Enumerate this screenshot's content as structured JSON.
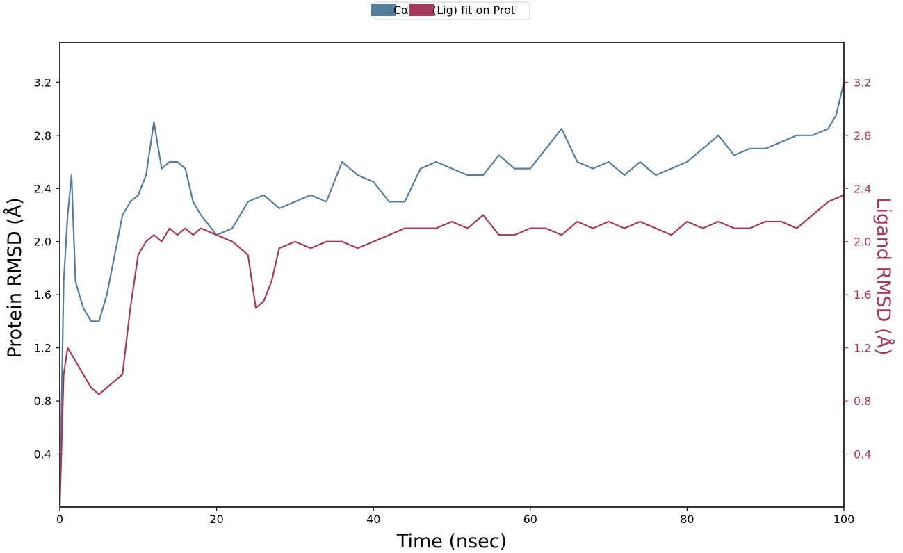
{
  "chart_data": {
    "type": "line",
    "xlabel": "Time (nsec)",
    "ylabel_left": "Protein RMSD (Å)",
    "ylabel_right": "Ligand RMSD (Å)",
    "xlim": [
      0,
      100
    ],
    "ylim_left": [
      0,
      3.5
    ],
    "ylim_right": [
      0,
      3.5
    ],
    "x_ticks": [
      0,
      20,
      40,
      60,
      80,
      100
    ],
    "y_ticks_left": [
      0.4,
      0.8,
      1.2,
      1.6,
      2.0,
      2.4,
      2.8,
      3.2
    ],
    "y_ticks_right": [
      0.4,
      0.8,
      1.2,
      1.6,
      2.0,
      2.4,
      2.8,
      3.2
    ],
    "grid": false,
    "legend_position": "top-center",
    "series": [
      {
        "name": "Cα",
        "axis": "left",
        "color": "#567e9c",
        "x": [
          0,
          0.5,
          1,
          1.5,
          2,
          3,
          4,
          5,
          6,
          7,
          8,
          9,
          10,
          11,
          12,
          13,
          14,
          15,
          16,
          17,
          18,
          20,
          22,
          24,
          26,
          28,
          30,
          32,
          34,
          36,
          38,
          40,
          42,
          44,
          46,
          48,
          50,
          52,
          54,
          56,
          58,
          60,
          62,
          64,
          66,
          68,
          70,
          72,
          74,
          76,
          78,
          80,
          82,
          84,
          86,
          88,
          90,
          92,
          94,
          96,
          98,
          99,
          100
        ],
        "y": [
          0.0,
          1.7,
          2.2,
          2.5,
          1.7,
          1.5,
          1.4,
          1.4,
          1.6,
          1.9,
          2.2,
          2.3,
          2.35,
          2.5,
          2.9,
          2.55,
          2.6,
          2.6,
          2.55,
          2.3,
          2.2,
          2.05,
          2.1,
          2.3,
          2.35,
          2.25,
          2.3,
          2.35,
          2.3,
          2.6,
          2.5,
          2.45,
          2.3,
          2.3,
          2.55,
          2.6,
          2.55,
          2.5,
          2.5,
          2.65,
          2.55,
          2.55,
          2.7,
          2.85,
          2.6,
          2.55,
          2.6,
          2.5,
          2.6,
          2.5,
          2.55,
          2.6,
          2.7,
          2.8,
          2.65,
          2.7,
          2.7,
          2.75,
          2.8,
          2.8,
          2.85,
          2.95,
          3.2
        ]
      },
      {
        "name": "(Lig) fit on Prot",
        "axis": "right",
        "color": "#a33a5e",
        "x": [
          0,
          0.5,
          1,
          2,
          3,
          4,
          5,
          6,
          7,
          8,
          9,
          10,
          11,
          12,
          13,
          14,
          15,
          16,
          17,
          18,
          20,
          22,
          24,
          25,
          26,
          27,
          28,
          30,
          32,
          34,
          36,
          38,
          40,
          42,
          44,
          46,
          48,
          50,
          52,
          54,
          56,
          58,
          60,
          62,
          64,
          66,
          68,
          70,
          72,
          74,
          76,
          78,
          80,
          82,
          84,
          86,
          88,
          90,
          92,
          94,
          96,
          98,
          100
        ],
        "y": [
          0.0,
          1.0,
          1.2,
          1.1,
          1.0,
          0.9,
          0.85,
          0.9,
          0.95,
          1.0,
          1.5,
          1.9,
          2.0,
          2.05,
          2.0,
          2.1,
          2.05,
          2.1,
          2.05,
          2.1,
          2.05,
          2.0,
          1.9,
          1.5,
          1.55,
          1.7,
          1.95,
          2.0,
          1.95,
          2.0,
          2.0,
          1.95,
          2.0,
          2.05,
          2.1,
          2.1,
          2.1,
          2.15,
          2.1,
          2.2,
          2.05,
          2.05,
          2.1,
          2.1,
          2.05,
          2.15,
          2.1,
          2.15,
          2.1,
          2.15,
          2.1,
          2.05,
          2.15,
          2.1,
          2.15,
          2.1,
          2.1,
          2.15,
          2.15,
          2.1,
          2.2,
          2.3,
          2.35
        ]
      }
    ]
  }
}
